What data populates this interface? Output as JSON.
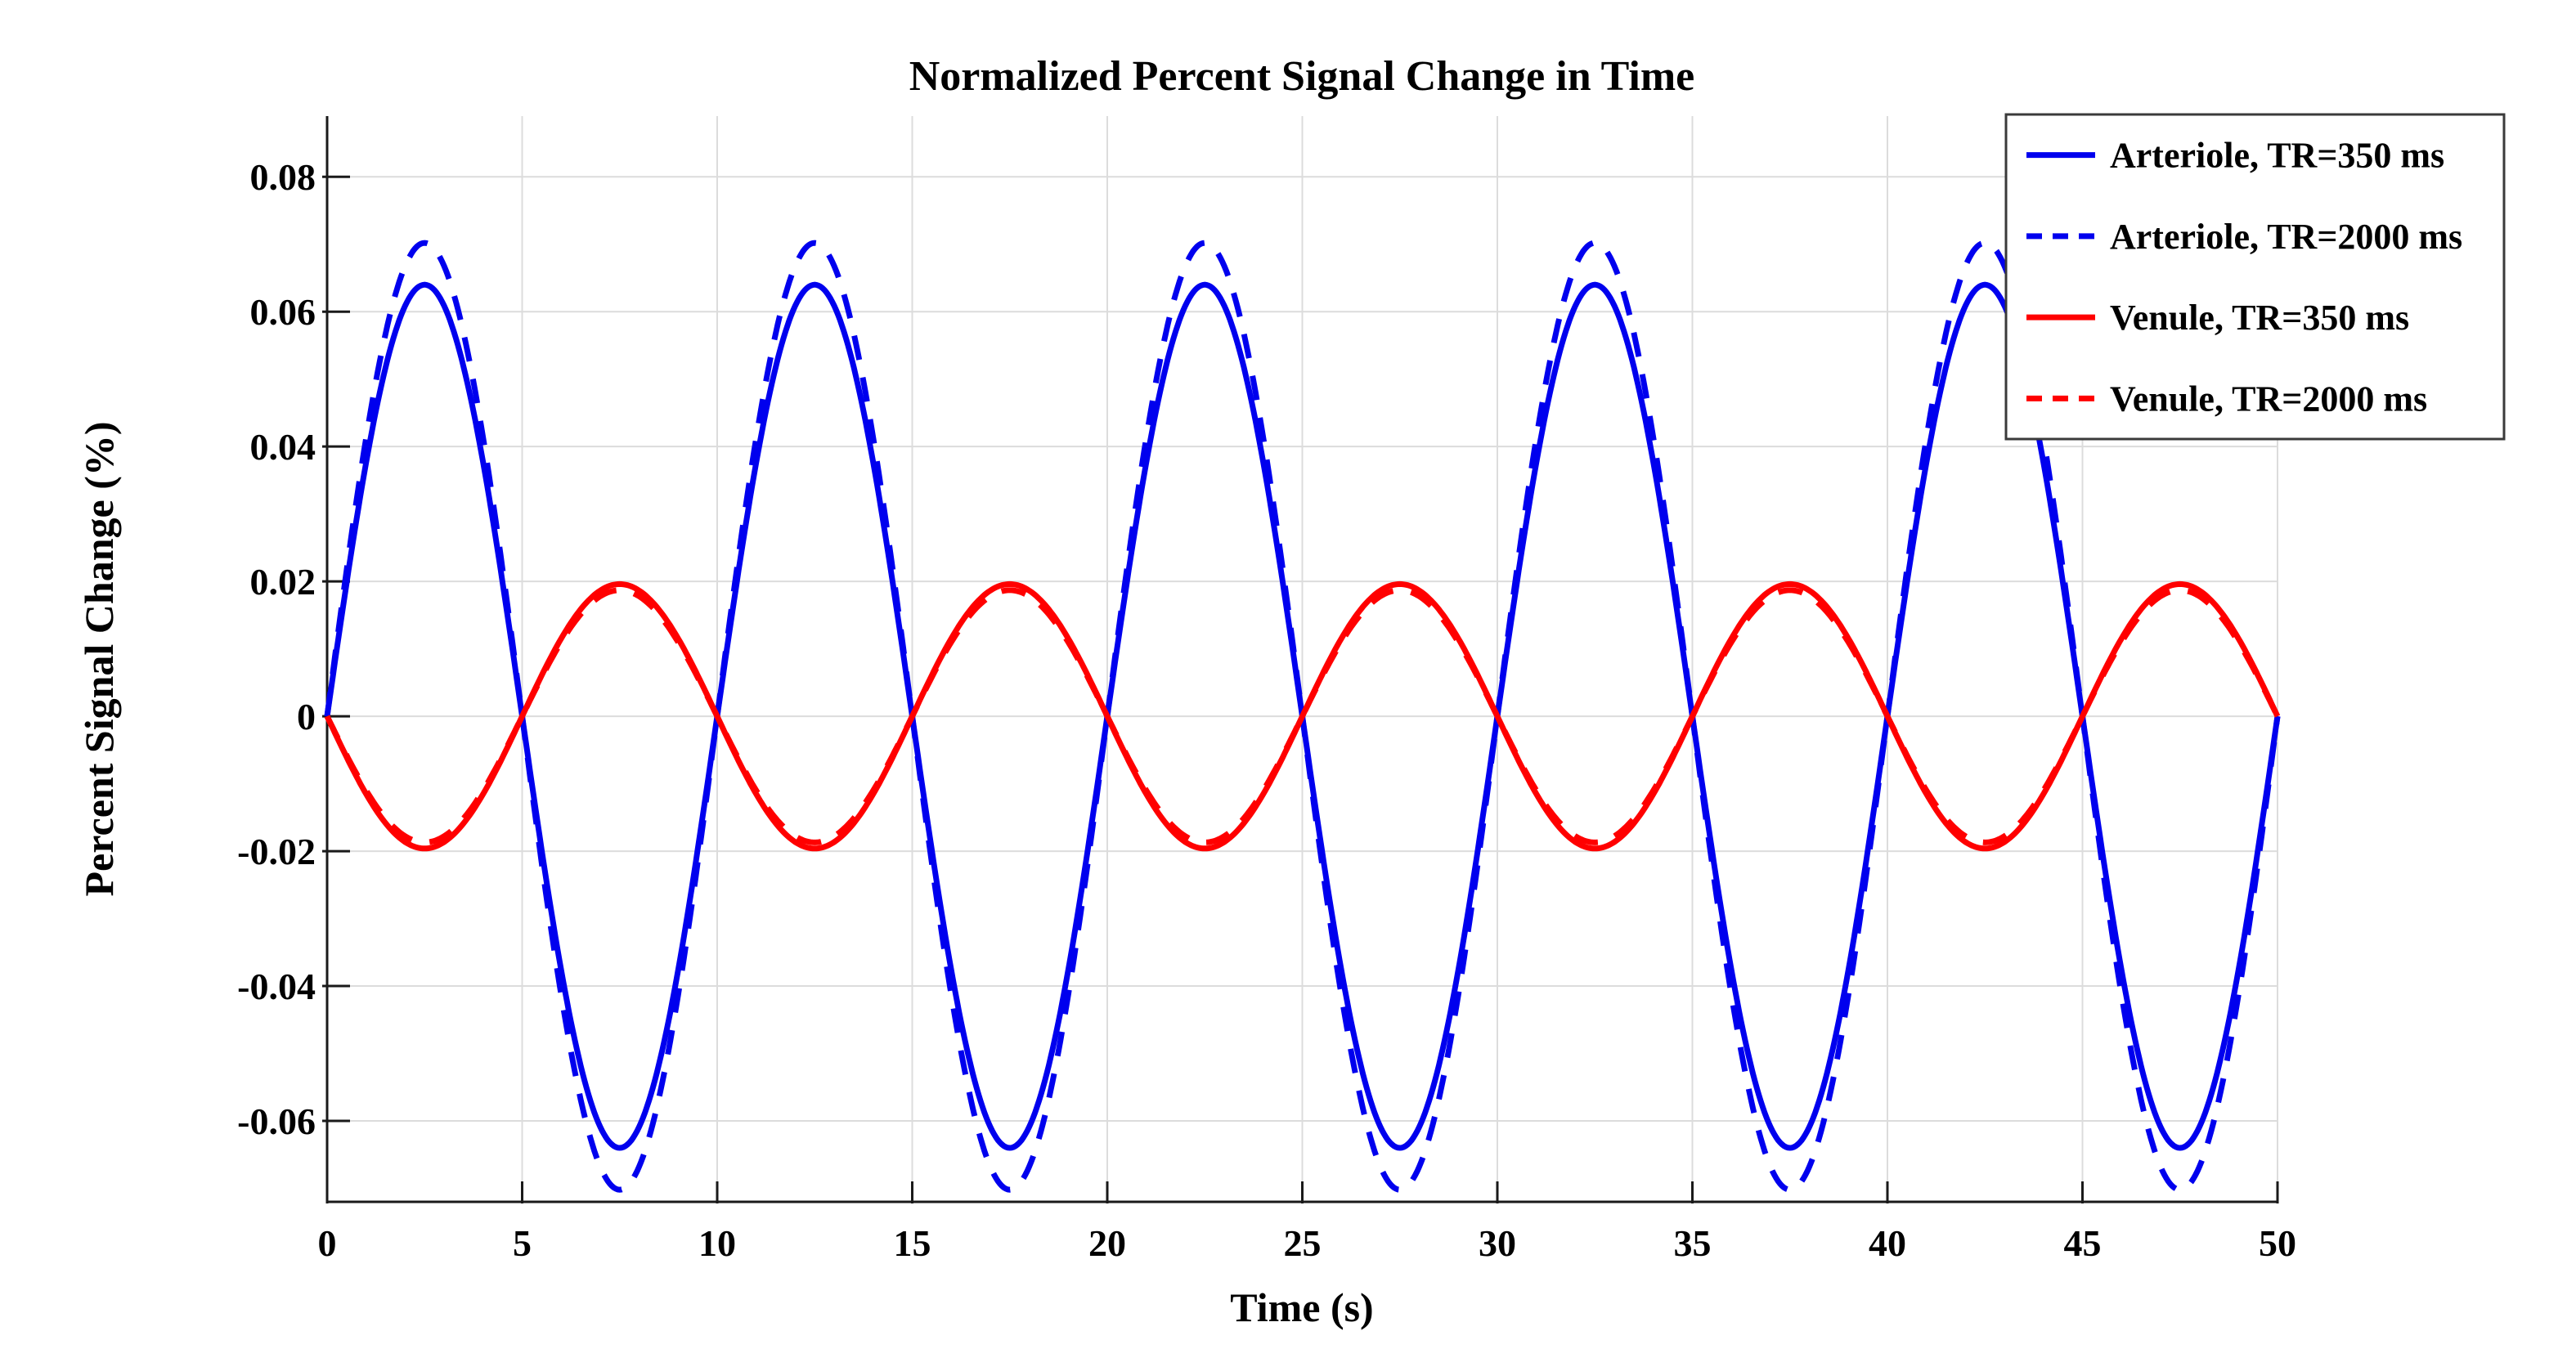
{
  "page": {
    "background": "#FFFFFF"
  },
  "chart_data": {
    "type": "line",
    "title": "Normalized Percent Signal Change in Time",
    "xlabel": "Time (s)",
    "ylabel": "Percent Signal Change (%)",
    "xlim": [
      0,
      50
    ],
    "ylim": [
      -0.072,
      0.089
    ],
    "xticks": [
      0,
      5,
      10,
      15,
      20,
      25,
      30,
      35,
      40,
      45,
      50
    ],
    "xtick_labels": [
      "0",
      "5",
      "10",
      "15",
      "20",
      "25",
      "30",
      "35",
      "40",
      "45",
      "50"
    ],
    "yticks": [
      -0.06,
      -0.04,
      -0.02,
      0,
      0.02,
      0.04,
      0.06,
      0.08
    ],
    "ytick_labels": [
      "-0.06",
      "-0.04",
      "-0.02",
      "0",
      "0.02",
      "0.04",
      "0.06",
      "0.08"
    ],
    "grid": true,
    "grid_color": "#DCDCDC",
    "axis_color": "#1A1A1A",
    "legend_position": "top-right",
    "series": [
      {
        "name": "Arteriole, TR=350 ms",
        "color": "#0000EE",
        "line_style": "solid",
        "waveform": "sine",
        "amplitude_pct": 0.064,
        "period_s": 10,
        "phase_s": 0
      },
      {
        "name": "Arteriole, TR=2000 ms",
        "color": "#0000EE",
        "line_style": "dashed",
        "waveform": "sine",
        "amplitude_pct": 0.0702,
        "period_s": 10,
        "phase_s": 0
      },
      {
        "name": "Venule, TR=350 ms",
        "color": "#FF0000",
        "line_style": "solid",
        "waveform": "sine",
        "amplitude_pct": -0.0196,
        "period_s": 10,
        "phase_s": 0
      },
      {
        "name": "Venule, TR=2000 ms",
        "color": "#FF0000",
        "line_style": "dashed",
        "waveform": "sine",
        "amplitude_pct": -0.0187,
        "period_s": 10,
        "phase_s": 0
      }
    ]
  }
}
